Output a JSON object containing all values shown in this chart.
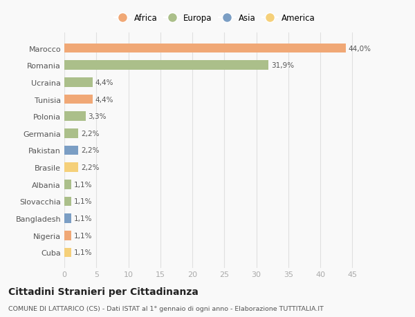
{
  "categories": [
    "Marocco",
    "Romania",
    "Ucraina",
    "Tunisia",
    "Polonia",
    "Germania",
    "Pakistan",
    "Brasile",
    "Albania",
    "Slovacchia",
    "Bangladesh",
    "Nigeria",
    "Cuba"
  ],
  "values": [
    44.0,
    31.9,
    4.4,
    4.4,
    3.3,
    2.2,
    2.2,
    2.2,
    1.1,
    1.1,
    1.1,
    1.1,
    1.1
  ],
  "labels": [
    "44,0%",
    "31,9%",
    "4,4%",
    "4,4%",
    "3,3%",
    "2,2%",
    "2,2%",
    "2,2%",
    "1,1%",
    "1,1%",
    "1,1%",
    "1,1%",
    "1,1%"
  ],
  "colors": [
    "#F0A876",
    "#ABBF8A",
    "#ABBF8A",
    "#F0A876",
    "#ABBF8A",
    "#ABBF8A",
    "#7B9EC4",
    "#F5D07A",
    "#ABBF8A",
    "#ABBF8A",
    "#7B9EC4",
    "#F0A876",
    "#F5D07A"
  ],
  "legend_labels": [
    "Africa",
    "Europa",
    "Asia",
    "America"
  ],
  "legend_colors": [
    "#F0A876",
    "#ABBF8A",
    "#7B9EC4",
    "#F5D07A"
  ],
  "title": "Cittadini Stranieri per Cittadinanza",
  "subtitle": "COMUNE DI LATTARICO (CS) - Dati ISTAT al 1° gennaio di ogni anno - Elaborazione TUTTITALIA.IT",
  "xlim": [
    0,
    47
  ],
  "xticks": [
    0,
    5,
    10,
    15,
    20,
    25,
    30,
    35,
    40,
    45
  ],
  "background_color": "#f9f9f9",
  "grid_color": "#e0e0e0"
}
